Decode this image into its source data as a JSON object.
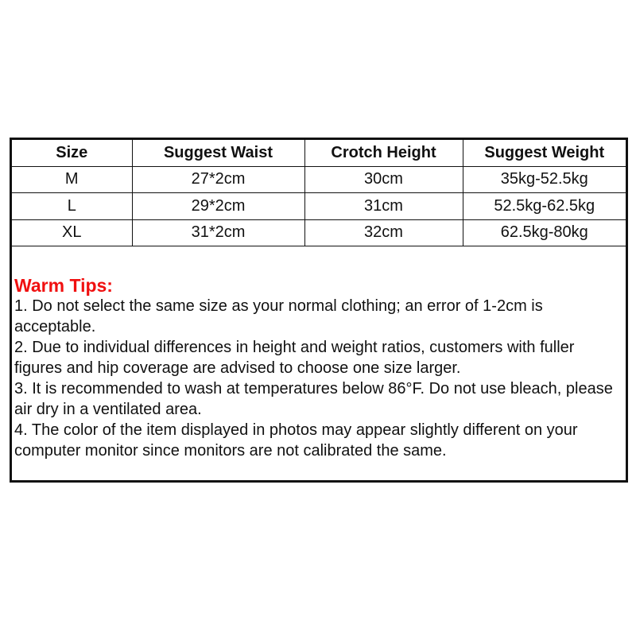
{
  "table": {
    "headers": [
      "Size",
      "Suggest Waist",
      "Crotch Height",
      "Suggest Weight"
    ],
    "rows": [
      [
        "M",
        "27*2cm",
        "30cm",
        "35kg-52.5kg"
      ],
      [
        "L",
        "29*2cm",
        "31cm",
        "52.5kg-62.5kg"
      ],
      [
        "XL",
        "31*2cm",
        "32cm",
        "62.5kg-80kg"
      ]
    ]
  },
  "tips": {
    "title": "Warm Tips:",
    "title_color": "#f01010",
    "items": [
      "1. Do not select the same size as your normal clothing; an error of 1-2cm is acceptable.",
      "2. Due to individual differences in height and weight ratios, customers with fuller figures and hip coverage are advised to choose one size larger.",
      "3. It is recommended to wash at temperatures below 86°F. Do not use bleach, please air dry in a ventilated area.",
      "4. The color of the item displayed in photos may appear slightly different on your computer monitor since monitors are not calibrated the same."
    ]
  }
}
